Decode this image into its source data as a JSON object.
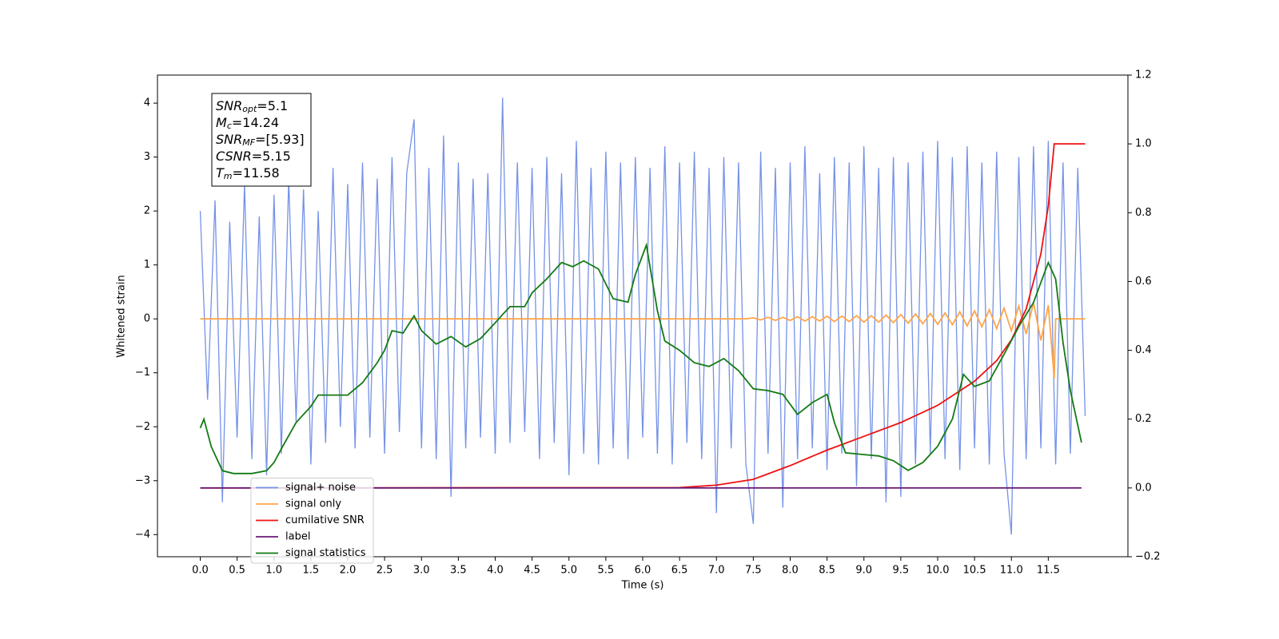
{
  "chart_data": {
    "type": "line",
    "xlabel": "Time (s)",
    "ylabel": "Whitened strain",
    "xlim": [
      -0.58,
      12.58
    ],
    "ylim": [
      -4.41,
      4.52
    ],
    "y2lim": [
      -0.2,
      1.2
    ],
    "xticks": [
      {
        "value": 0,
        "label": "0.0"
      },
      {
        "value": 0.5,
        "label": "0.5"
      },
      {
        "value": 1,
        "label": "1.0"
      },
      {
        "value": 1.5,
        "label": "1.5"
      },
      {
        "value": 2,
        "label": "2.0"
      },
      {
        "value": 2.5,
        "label": "2.5"
      },
      {
        "value": 3,
        "label": "3.0"
      },
      {
        "value": 3.5,
        "label": "3.5"
      },
      {
        "value": 4,
        "label": "4.0"
      },
      {
        "value": 4.5,
        "label": "4.5"
      },
      {
        "value": 5,
        "label": "5.0"
      },
      {
        "value": 5.5,
        "label": "5.5"
      },
      {
        "value": 6,
        "label": "6.0"
      },
      {
        "value": 6.5,
        "label": "6.5"
      },
      {
        "value": 7,
        "label": "7.0"
      },
      {
        "value": 7.5,
        "label": "7.5"
      },
      {
        "value": 8,
        "label": "8.0"
      },
      {
        "value": 8.5,
        "label": "8.5"
      },
      {
        "value": 9,
        "label": "9.0"
      },
      {
        "value": 9.5,
        "label": "9.5"
      },
      {
        "value": 10,
        "label": "10.0"
      },
      {
        "value": 10.5,
        "label": "10.5"
      },
      {
        "value": 11,
        "label": "11.0"
      },
      {
        "value": 11.5,
        "label": "11.5"
      }
    ],
    "yticks": [
      {
        "value": -4,
        "label": "−4"
      },
      {
        "value": -3,
        "label": "−3"
      },
      {
        "value": -2,
        "label": "−2"
      },
      {
        "value": -1,
        "label": "−1"
      },
      0,
      1,
      2,
      3,
      4
    ],
    "y2ticks": [
      {
        "value": -0.2,
        "label": "−0.2"
      },
      {
        "value": 0,
        "label": "0.0"
      },
      0.2,
      0.4,
      0.6,
      0.8,
      {
        "value": 1,
        "label": "1.0"
      },
      1.2
    ],
    "legend": "lower left",
    "annotation": [
      [
        "SNR",
        "opt",
        "=5.1"
      ],
      [
        "M",
        "c",
        "=14.24"
      ],
      [
        "SNR",
        "MF",
        "=[5.93]"
      ],
      [
        "CSNR",
        "",
        "=5.15"
      ],
      [
        "T",
        "m",
        "=11.58"
      ]
    ],
    "series": [
      {
        "name": "signal+ noise",
        "color": "#7592e6",
        "axis": "y",
        "x": [
          0,
          0.1,
          0.2,
          0.3,
          0.4,
          0.5,
          0.6,
          0.7,
          0.8,
          0.9,
          1,
          1.1,
          1.2,
          1.3,
          1.4,
          1.5,
          1.6,
          1.7,
          1.8,
          1.9,
          2,
          2.1,
          2.2,
          2.3,
          2.4,
          2.5,
          2.6,
          2.7,
          2.8,
          2.9,
          3,
          3.1,
          3.2,
          3.3,
          3.4,
          3.5,
          3.6,
          3.7,
          3.8,
          3.9,
          4,
          4.1,
          4.2,
          4.3,
          4.4,
          4.5,
          4.6,
          4.7,
          4.8,
          4.9,
          5,
          5.1,
          5.2,
          5.3,
          5.4,
          5.5,
          5.6,
          5.7,
          5.8,
          5.9,
          6,
          6.1,
          6.2,
          6.3,
          6.4,
          6.5,
          6.6,
          6.7,
          6.8,
          6.9,
          7,
          7.1,
          7.2,
          7.3,
          7.4,
          7.5,
          7.6,
          7.7,
          7.8,
          7.9,
          8,
          8.1,
          8.2,
          8.3,
          8.4,
          8.5,
          8.6,
          8.7,
          8.8,
          8.9,
          9,
          9.1,
          9.2,
          9.3,
          9.4,
          9.5,
          9.6,
          9.7,
          9.8,
          9.9,
          10,
          10.1,
          10.2,
          10.3,
          10.4,
          10.5,
          10.6,
          10.7,
          10.8,
          10.9,
          11,
          11.1,
          11.2,
          11.3,
          11.4,
          11.5,
          11.6,
          11.7,
          11.8,
          11.9,
          12
        ],
        "values": [
          2.0,
          -1.5,
          2.2,
          -3.4,
          1.8,
          -2.2,
          2.5,
          -2.6,
          1.9,
          -2.9,
          2.3,
          -2.5,
          2.6,
          -1.9,
          2.4,
          -2.7,
          2.0,
          -2.3,
          2.8,
          -2.0,
          2.5,
          -2.4,
          2.9,
          -2.2,
          2.6,
          -2.5,
          3.0,
          -2.1,
          2.7,
          3.7,
          -2.4,
          2.8,
          -2.6,
          3.4,
          -3.3,
          2.9,
          -2.4,
          2.6,
          -2.2,
          2.7,
          -2.5,
          4.1,
          -2.3,
          2.9,
          -2.1,
          2.8,
          -2.6,
          3.0,
          -2.3,
          2.7,
          -2.9,
          3.3,
          -2.5,
          2.8,
          -2.7,
          3.1,
          -2.4,
          2.9,
          -2.6,
          3.0,
          -2.2,
          2.8,
          -2.5,
          3.2,
          -2.7,
          2.9,
          -2.3,
          3.1,
          -2.6,
          2.8,
          -3.6,
          3.0,
          -2.4,
          2.9,
          -2.7,
          -3.8,
          3.1,
          -2.5,
          2.8,
          -3.5,
          2.9,
          -2.6,
          3.2,
          -2.4,
          2.7,
          -2.8,
          3.0,
          -2.5,
          2.9,
          -3.1,
          3.2,
          -2.6,
          2.8,
          -3.4,
          3.0,
          -3.3,
          2.9,
          -2.7,
          3.1,
          -2.5,
          3.3,
          -2.6,
          3.0,
          -2.8,
          3.2,
          -2.4,
          2.9,
          -2.7,
          3.1,
          -2.5,
          -4.0,
          3.0,
          -2.6,
          3.2,
          -2.4,
          3.3,
          -2.7,
          2.9,
          -2.5,
          2.8,
          -1.8
        ]
      },
      {
        "name": "signal only",
        "color": "#ffa54a",
        "axis": "y",
        "x": [
          0,
          7.4,
          7.5,
          7.6,
          7.7,
          7.8,
          7.9,
          8,
          8.1,
          8.2,
          8.3,
          8.4,
          8.5,
          8.6,
          8.7,
          8.8,
          8.9,
          9,
          9.1,
          9.2,
          9.3,
          9.4,
          9.5,
          9.6,
          9.7,
          9.8,
          9.9,
          10,
          10.1,
          10.2,
          10.3,
          10.4,
          10.5,
          10.6,
          10.7,
          10.8,
          10.9,
          11,
          11.1,
          11.2,
          11.3,
          11.4,
          11.5,
          11.58,
          11.6,
          12
        ],
        "values": [
          0,
          0,
          0.02,
          -0.02,
          0.03,
          -0.03,
          0.03,
          -0.03,
          0.04,
          -0.04,
          0.04,
          -0.04,
          0.05,
          -0.05,
          0.05,
          -0.05,
          0.06,
          -0.06,
          0.06,
          -0.06,
          0.07,
          -0.07,
          0.08,
          -0.08,
          0.09,
          -0.09,
          0.1,
          -0.1,
          0.11,
          -0.11,
          0.13,
          -0.13,
          0.15,
          -0.15,
          0.17,
          -0.18,
          0.2,
          -0.22,
          0.24,
          -0.28,
          0.3,
          -0.4,
          0.25,
          -1.1,
          0,
          0
        ]
      },
      {
        "name": "cumilative SNR",
        "color": "#ee1111",
        "axis": "y2",
        "x": [
          0,
          6.5,
          7,
          7.5,
          8,
          8.5,
          9,
          9.5,
          10,
          10.5,
          10.8,
          11,
          11.2,
          11.4,
          11.5,
          11.58,
          12
        ],
        "values": [
          0,
          0.001,
          0.008,
          0.025,
          0.065,
          0.11,
          0.15,
          0.19,
          0.24,
          0.31,
          0.37,
          0.43,
          0.52,
          0.68,
          0.82,
          1.0,
          1.0
        ]
      },
      {
        "name": "label",
        "color": "#6a1a78",
        "axis": "y2",
        "x": [
          0,
          11.95
        ],
        "values": [
          0,
          0
        ]
      },
      {
        "name": "signal statistics",
        "color": "#137a13",
        "axis": "y2",
        "x": [
          0,
          0.05,
          0.15,
          0.3,
          0.45,
          0.7,
          0.9,
          1,
          1.1,
          1.3,
          1.5,
          1.6,
          1.8,
          2,
          2.2,
          2.4,
          2.5,
          2.6,
          2.75,
          2.9,
          3,
          3.2,
          3.4,
          3.6,
          3.8,
          4,
          4.1,
          4.2,
          4.4,
          4.5,
          4.7,
          4.9,
          5.05,
          5.2,
          5.4,
          5.6,
          5.8,
          5.9,
          6.05,
          6.2,
          6.3,
          6.5,
          6.7,
          6.9,
          7.1,
          7.3,
          7.5,
          7.7,
          7.9,
          8.1,
          8.3,
          8.5,
          8.6,
          8.75,
          9,
          9.2,
          9.4,
          9.6,
          9.8,
          10,
          10.2,
          10.35,
          10.5,
          10.7,
          10.9,
          11.1,
          11.3,
          11.4,
          11.5,
          11.6,
          11.7,
          11.8,
          11.95
        ],
        "values": [
          0.174,
          0.2,
          0.12,
          0.05,
          0.042,
          0.042,
          0.05,
          0.074,
          0.114,
          0.19,
          0.237,
          0.27,
          0.27,
          0.27,
          0.306,
          0.364,
          0.4,
          0.457,
          0.45,
          0.5,
          0.457,
          0.418,
          0.44,
          0.41,
          0.434,
          0.48,
          0.504,
          0.527,
          0.527,
          0.567,
          0.608,
          0.655,
          0.643,
          0.66,
          0.636,
          0.55,
          0.54,
          0.62,
          0.706,
          0.515,
          0.427,
          0.4,
          0.364,
          0.353,
          0.376,
          0.341,
          0.288,
          0.283,
          0.272,
          0.214,
          0.248,
          0.272,
          0.19,
          0.102,
          0.097,
          0.093,
          0.079,
          0.051,
          0.074,
          0.121,
          0.2,
          0.33,
          0.295,
          0.311,
          0.388,
          0.469,
          0.539,
          0.597,
          0.655,
          0.607,
          0.423,
          0.283,
          0.132
        ]
      }
    ]
  }
}
